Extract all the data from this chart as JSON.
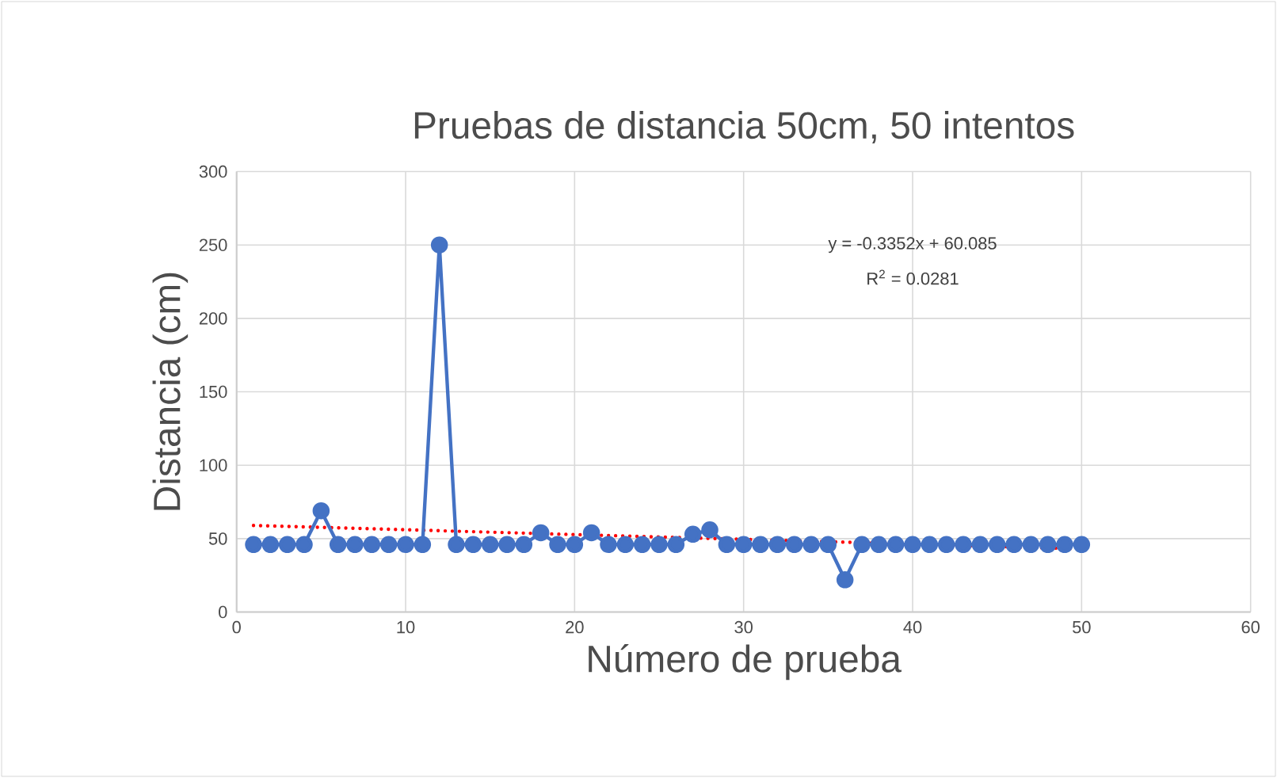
{
  "chart_data": {
    "type": "line",
    "title": "Pruebas de distancia 50cm, 50 intentos",
    "xlabel": "Número de prueba",
    "ylabel": "Distancia (cm)",
    "xlim": [
      0,
      60
    ],
    "xticks": [
      0,
      10,
      20,
      30,
      40,
      50,
      60
    ],
    "ylim": [
      0,
      300
    ],
    "yticks": [
      0,
      50,
      100,
      150,
      200,
      250,
      300
    ],
    "grid": true,
    "marker": "circle",
    "series": [
      {
        "color": "#4472c4",
        "x": [
          1,
          2,
          3,
          4,
          5,
          6,
          7,
          8,
          9,
          10,
          11,
          12,
          13,
          14,
          15,
          16,
          17,
          18,
          19,
          20,
          21,
          22,
          23,
          24,
          25,
          26,
          27,
          28,
          29,
          30,
          31,
          32,
          33,
          34,
          35,
          36,
          37,
          38,
          39,
          40,
          41,
          42,
          43,
          44,
          45,
          46,
          47,
          48,
          49,
          50
        ],
        "values": [
          46,
          46,
          46,
          46,
          69,
          46,
          46,
          46,
          46,
          46,
          46,
          250,
          46,
          46,
          46,
          46,
          46,
          54,
          46,
          46,
          54,
          46,
          46,
          46,
          46,
          46,
          53,
          56,
          46,
          46,
          46,
          46,
          46,
          46,
          46,
          22,
          46,
          46,
          46,
          46,
          46,
          46,
          46,
          46,
          46,
          46,
          46,
          46,
          46,
          46
        ]
      },
      {
        "color": "#ff0000",
        "line_style": "dotted",
        "marker": "none",
        "x": [
          1,
          50
        ],
        "values": [
          59,
          43
        ]
      }
    ],
    "annotations": [
      "y = -0.3352x + 60.085",
      "R$^{2}$ = 0.0281"
    ]
  }
}
